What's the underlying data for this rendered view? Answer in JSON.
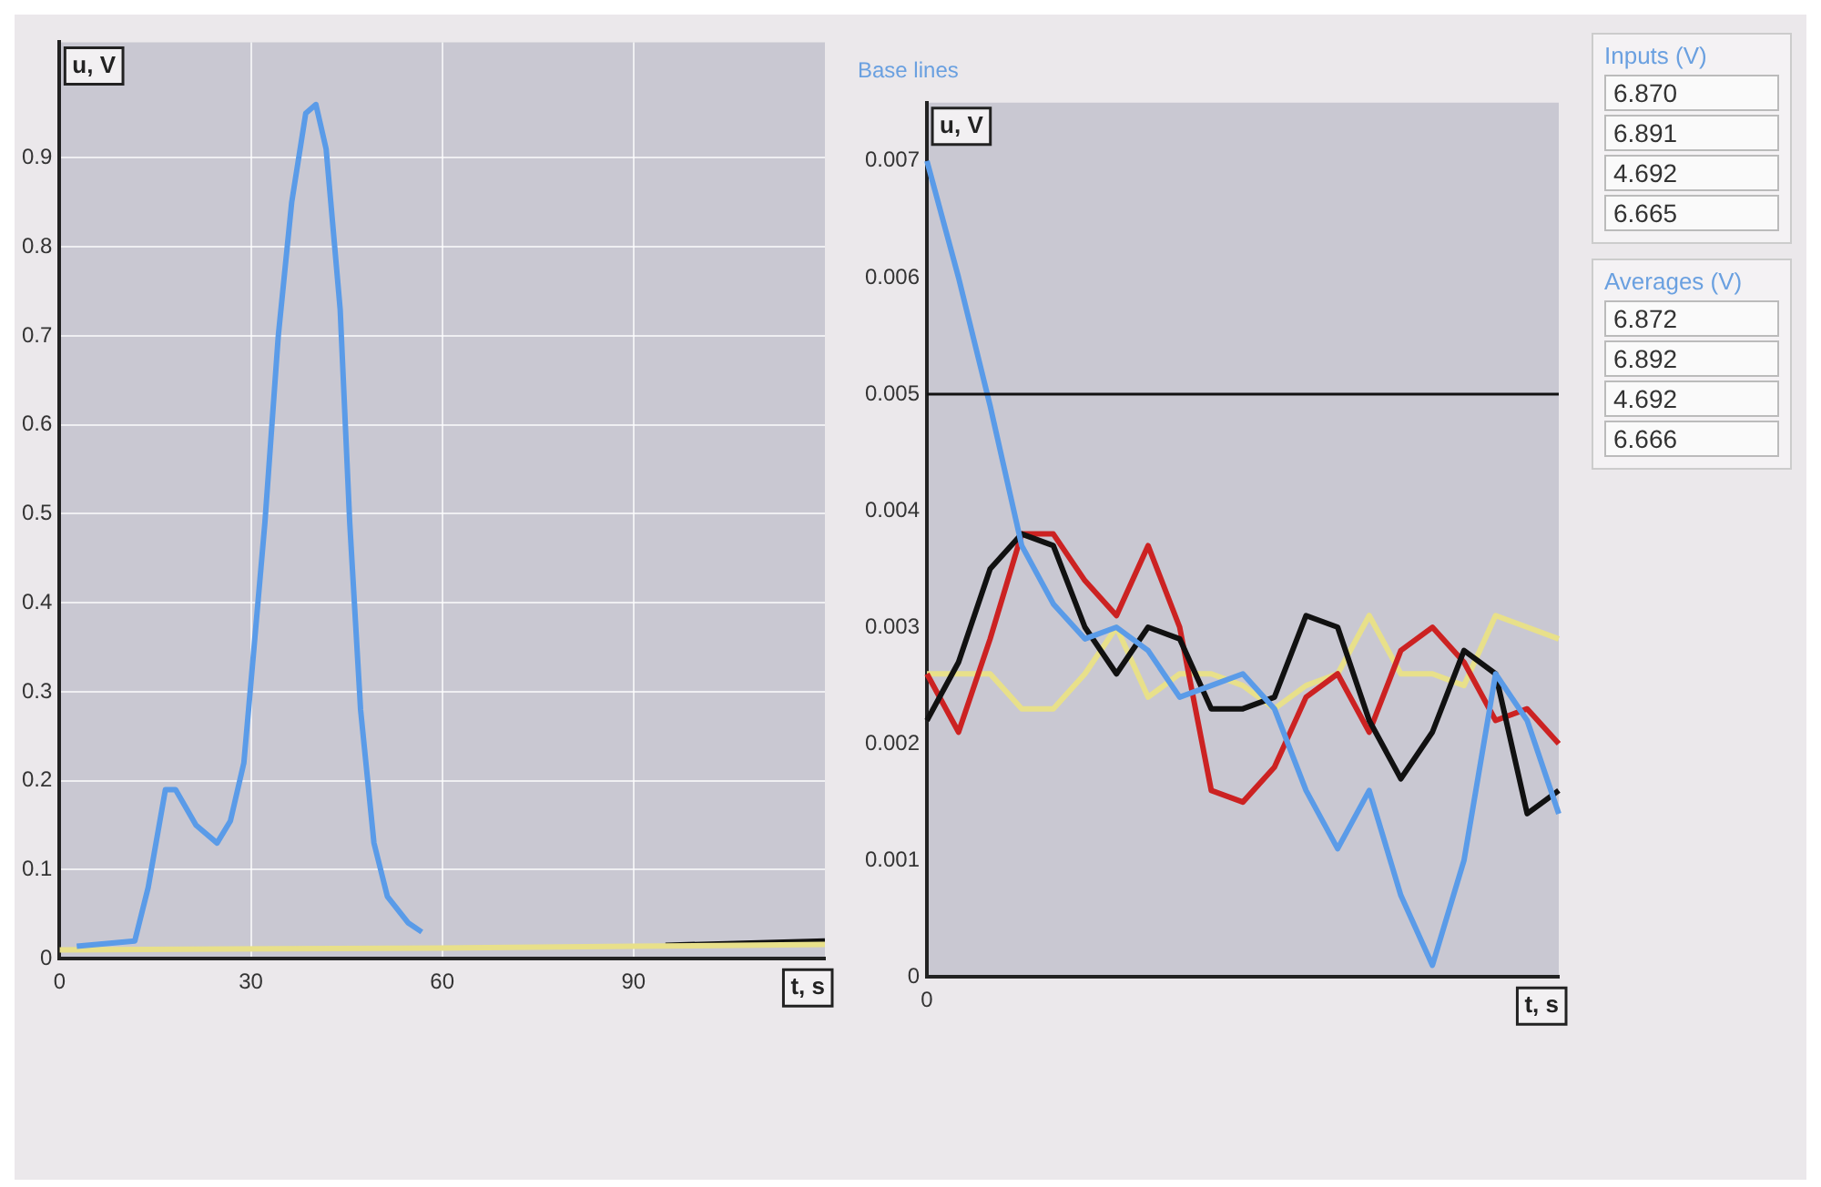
{
  "chart_data": [
    {
      "type": "line",
      "xlabel": "t, s",
      "ylabel": "u, V",
      "xlim": [
        0,
        120
      ],
      "xticks": [
        0,
        30,
        60,
        90
      ],
      "ylim": [
        0,
        1.03
      ],
      "yticks": [
        0,
        0.1,
        0.2,
        0.3,
        0.4,
        0.5,
        0.6,
        0.7,
        0.8,
        0.9
      ],
      "grid": true,
      "legend": false,
      "marker": "none",
      "series": [
        {
          "color": "#5a9be8",
          "x": [
            2.7,
            11.8,
            13.9,
            16.6,
            18.2,
            21.4,
            24.7,
            26.8,
            28.9,
            30.5,
            32.2,
            34.3,
            36.4,
            38.6,
            40.2,
            41.8,
            44,
            45.5,
            47.2,
            49.3,
            51.4,
            54.7,
            56.8
          ],
          "values": [
            0.014,
            0.02,
            0.08,
            0.19,
            0.19,
            0.15,
            0.13,
            0.155,
            0.22,
            0.35,
            0.49,
            0.7,
            0.85,
            0.95,
            0.96,
            0.91,
            0.73,
            0.49,
            0.28,
            0.13,
            0.07,
            0.04,
            0.03
          ]
        },
        {
          "color": "#e8e08a",
          "x": [
            0,
            60,
            90,
            120
          ],
          "values": [
            0.01,
            0.012,
            0.014,
            0.016
          ]
        },
        {
          "color": "#111111",
          "x": [
            95,
            120
          ],
          "values": [
            0.015,
            0.02
          ]
        }
      ]
    },
    {
      "type": "line",
      "title": "Base lines",
      "xlabel": "t, s",
      "ylabel": "u, V",
      "categories": [
        "0",
        null,
        null,
        null,
        null,
        null,
        null,
        null,
        null,
        null,
        null,
        null,
        null,
        null,
        null,
        null,
        null,
        null,
        null,
        null,
        null
      ],
      "ylim": [
        0,
        0.0075
      ],
      "yticks": [
        0,
        0.001,
        0.002,
        0.003,
        0.004,
        0.005,
        0.006,
        0.007
      ],
      "grid": false,
      "legend": false,
      "marker": "none",
      "ref_lines": [
        {
          "axis": "y",
          "value": 0.005,
          "color": "#111111"
        }
      ],
      "series": [
        {
          "color": "#5a9be8",
          "values": [
            0.007,
            0.006,
            0.0049,
            0.0037,
            0.0032,
            0.0029,
            0.003,
            0.0028,
            0.0024,
            0.0025,
            0.0026,
            0.0023,
            0.0016,
            0.0011,
            0.0016,
            0.0007,
            0.0001,
            0.001,
            0.0026,
            0.0022,
            0.0014
          ]
        },
        {
          "color": "#111111",
          "values": [
            0.0022,
            0.0027,
            0.0035,
            0.0038,
            0.0037,
            0.003,
            0.0026,
            0.003,
            0.0029,
            0.0023,
            0.0023,
            0.0024,
            0.0031,
            0.003,
            0.0022,
            0.0017,
            0.0021,
            0.0028,
            0.0026,
            0.0014,
            0.0016
          ]
        },
        {
          "color": "#cc2222",
          "values": [
            0.0026,
            0.0021,
            0.0029,
            0.0038,
            0.0038,
            0.0034,
            0.0031,
            0.0037,
            0.003,
            0.0016,
            0.0015,
            0.0018,
            0.0024,
            0.0026,
            0.0021,
            0.0028,
            0.003,
            0.0027,
            0.0022,
            0.0023,
            0.002
          ]
        },
        {
          "color": "#e8e08a",
          "values": [
            0.0026,
            0.0026,
            0.0026,
            0.0023,
            0.0023,
            0.0026,
            0.003,
            0.0024,
            0.0026,
            0.0026,
            0.0025,
            0.0023,
            0.0025,
            0.0026,
            0.0031,
            0.0026,
            0.0026,
            0.0025,
            0.0031,
            0.003,
            0.0029
          ]
        }
      ]
    },
    {
      "type": "other",
      "title": "Inputs (V)",
      "annotations": [
        "6.870",
        "6.891",
        "4.692",
        "6.665"
      ]
    },
    {
      "type": "other",
      "title": "Averages (V)",
      "annotations": [
        "6.872",
        "6.892",
        "4.692",
        "6.666"
      ]
    }
  ]
}
